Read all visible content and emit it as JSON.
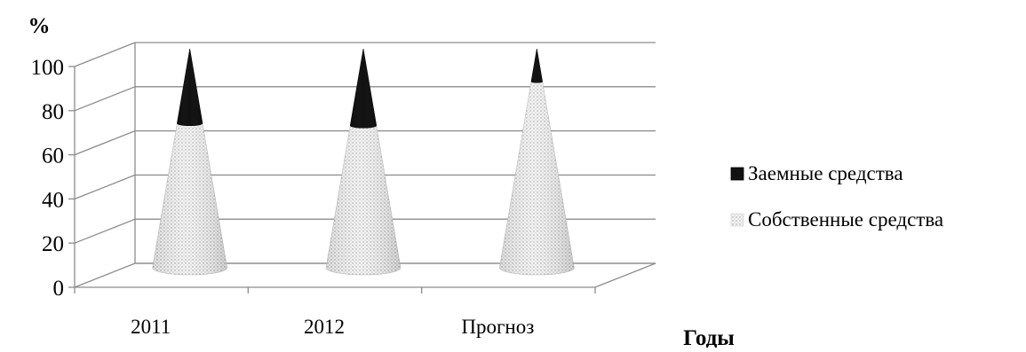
{
  "chart_data": {
    "type": "bar",
    "subtype": "3d-stacked-100-cone",
    "title": "",
    "xlabel": "Годы",
    "ylabel": "%",
    "categories": [
      "2011",
      "2012",
      "Прогноз"
    ],
    "series": [
      {
        "name": "Собственные средства",
        "values": [
          66,
          65,
          85
        ],
        "pattern": "dotted",
        "color": "#e6e6e6"
      },
      {
        "name": "Заемные средства",
        "values": [
          34,
          35,
          15
        ],
        "pattern": "solid",
        "color": "#111111"
      }
    ],
    "ylim": [
      0,
      100
    ],
    "yticks": [
      0,
      20,
      40,
      60,
      80,
      100
    ],
    "grid": true,
    "legend_position": "right"
  }
}
